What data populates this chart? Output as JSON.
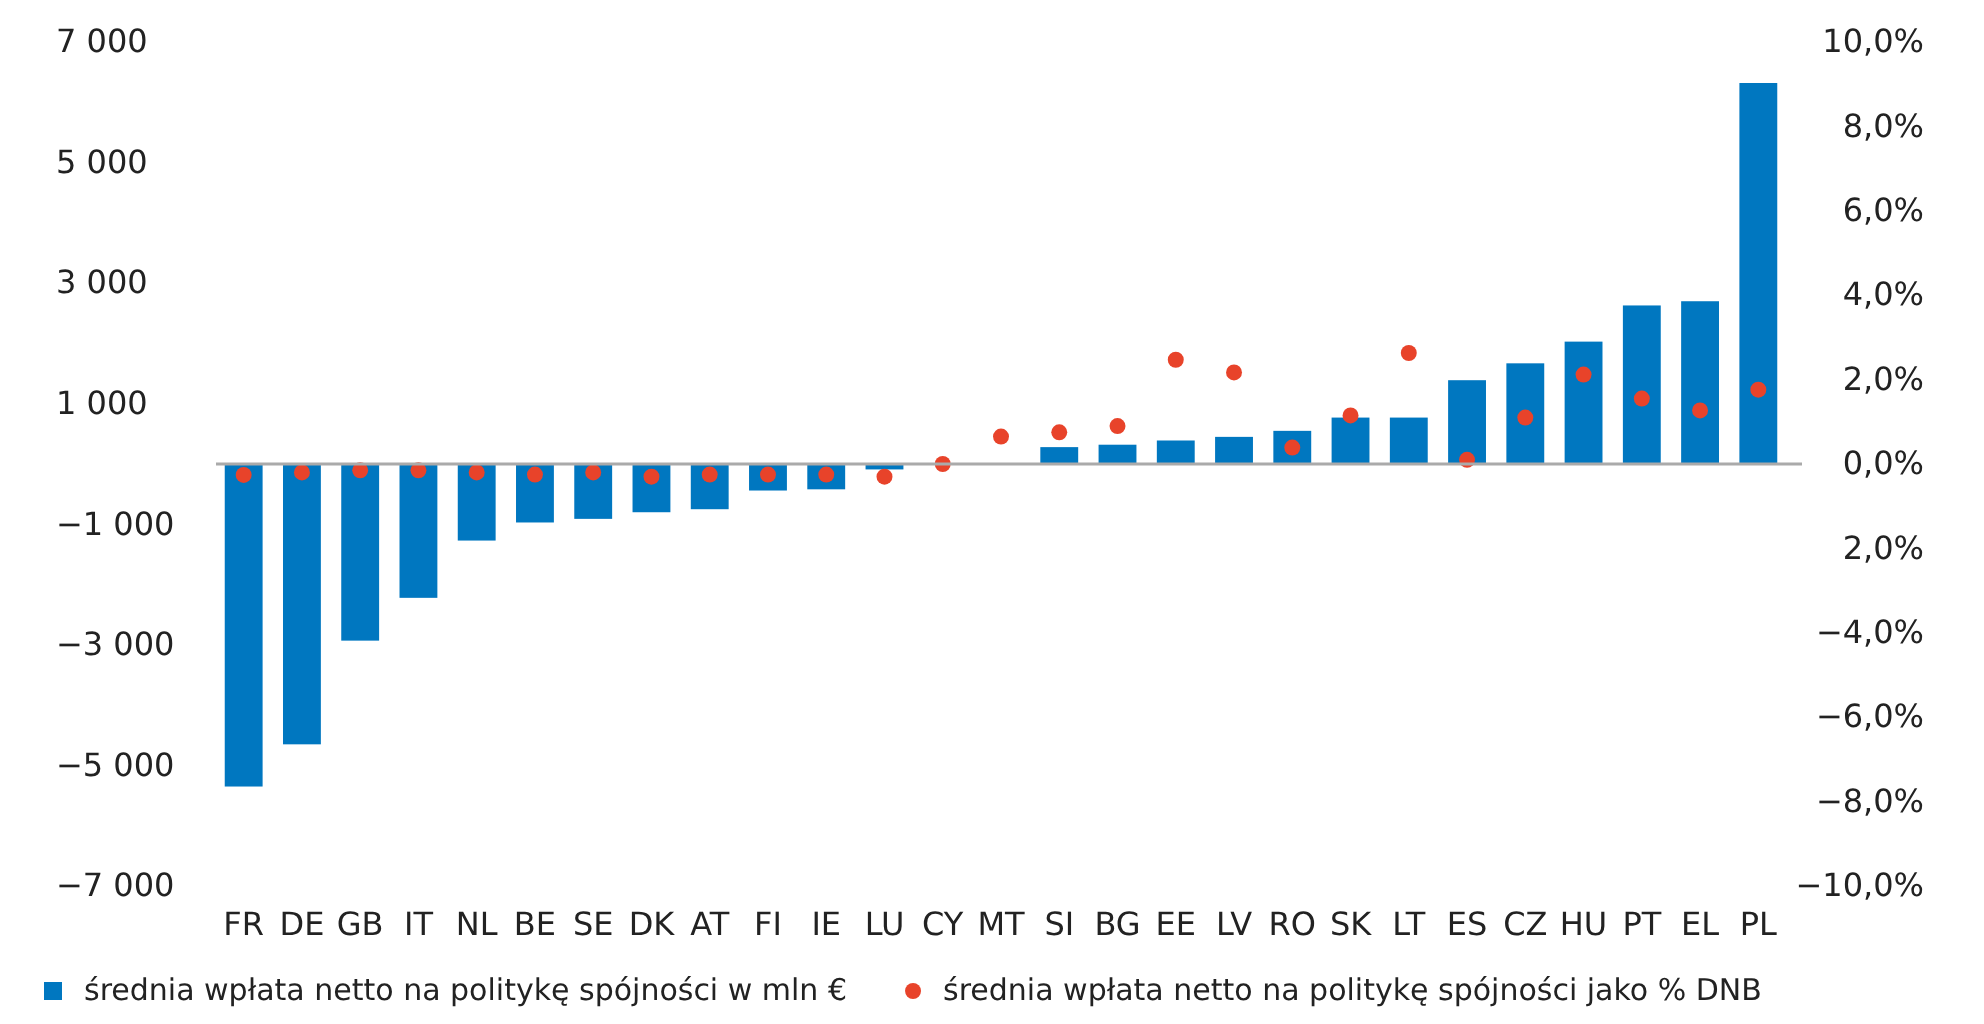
{
  "chart_data": {
    "type": "bar",
    "categories": [
      "FR",
      "DE",
      "GB",
      "IT",
      "NL",
      "BE",
      "SE",
      "DK",
      "AT",
      "FI",
      "IE",
      "LU",
      "CY",
      "MT",
      "SI",
      "BG",
      "EE",
      "LV",
      "RO",
      "SK",
      "LT",
      "ES",
      "CZ",
      "HU",
      "PT",
      "EL",
      "PL"
    ],
    "series": [
      {
        "name": "średnia wpłata netto na politykę spójności w mln €",
        "color": "#0077c0",
        "values": [
          -5350,
          -4650,
          -2930,
          -2220,
          -1270,
          -970,
          -910,
          -800,
          -750,
          -440,
          -420,
          -90,
          0,
          0,
          280,
          320,
          390,
          450,
          550,
          770,
          770,
          1390,
          1670,
          2030,
          2630,
          2700,
          6320
        ]
      },
      {
        "name": "średnia wpłata netto na politykę spójności jako % DNB",
        "type": "scatter",
        "axis": "y2",
        "marker": "circle",
        "color": "#e8432a",
        "values": [
          -0.26,
          -0.2,
          -0.15,
          -0.15,
          -0.2,
          -0.25,
          -0.2,
          -0.3,
          -0.25,
          -0.25,
          -0.25,
          -0.3,
          0,
          0.65,
          0.75,
          0.9,
          2.47,
          2.17,
          0.39,
          1.15,
          2.63,
          0.1,
          1.1,
          2.12,
          1.55,
          1.27,
          1.76
        ]
      }
    ],
    "ylim": [
      -7000,
      7000
    ],
    "yticks": [
      {
        "value": 7000,
        "label": "7 000"
      },
      {
        "value": 5000,
        "label": "5 000"
      },
      {
        "value": 3000,
        "label": "3 000"
      },
      {
        "value": 1000,
        "label": "1 000"
      },
      {
        "value": -1000,
        "label": "−1 000"
      },
      {
        "value": -3000,
        "label": "−3 000"
      },
      {
        "value": -5000,
        "label": "−5 000"
      },
      {
        "value": -7000,
        "label": "−7 000"
      }
    ],
    "y2lim": [
      -10,
      10
    ],
    "y2ticks": [
      {
        "value": 10,
        "label": "10,0%"
      },
      {
        "value": 8,
        "label": "8,0%"
      },
      {
        "value": 6,
        "label": "6,0%"
      },
      {
        "value": 4,
        "label": "4,0%"
      },
      {
        "value": 2,
        "label": "2,0%"
      },
      {
        "value": 0,
        "label": "0,0%"
      },
      {
        "value": -2,
        "label": "2,0%"
      },
      {
        "value": -4,
        "label": "−4,0%"
      },
      {
        "value": -6,
        "label": "−6,0%"
      },
      {
        "value": -8,
        "label": "−8,0%"
      },
      {
        "value": -10,
        "label": "−10,0%"
      }
    ],
    "legend": "bottom"
  }
}
